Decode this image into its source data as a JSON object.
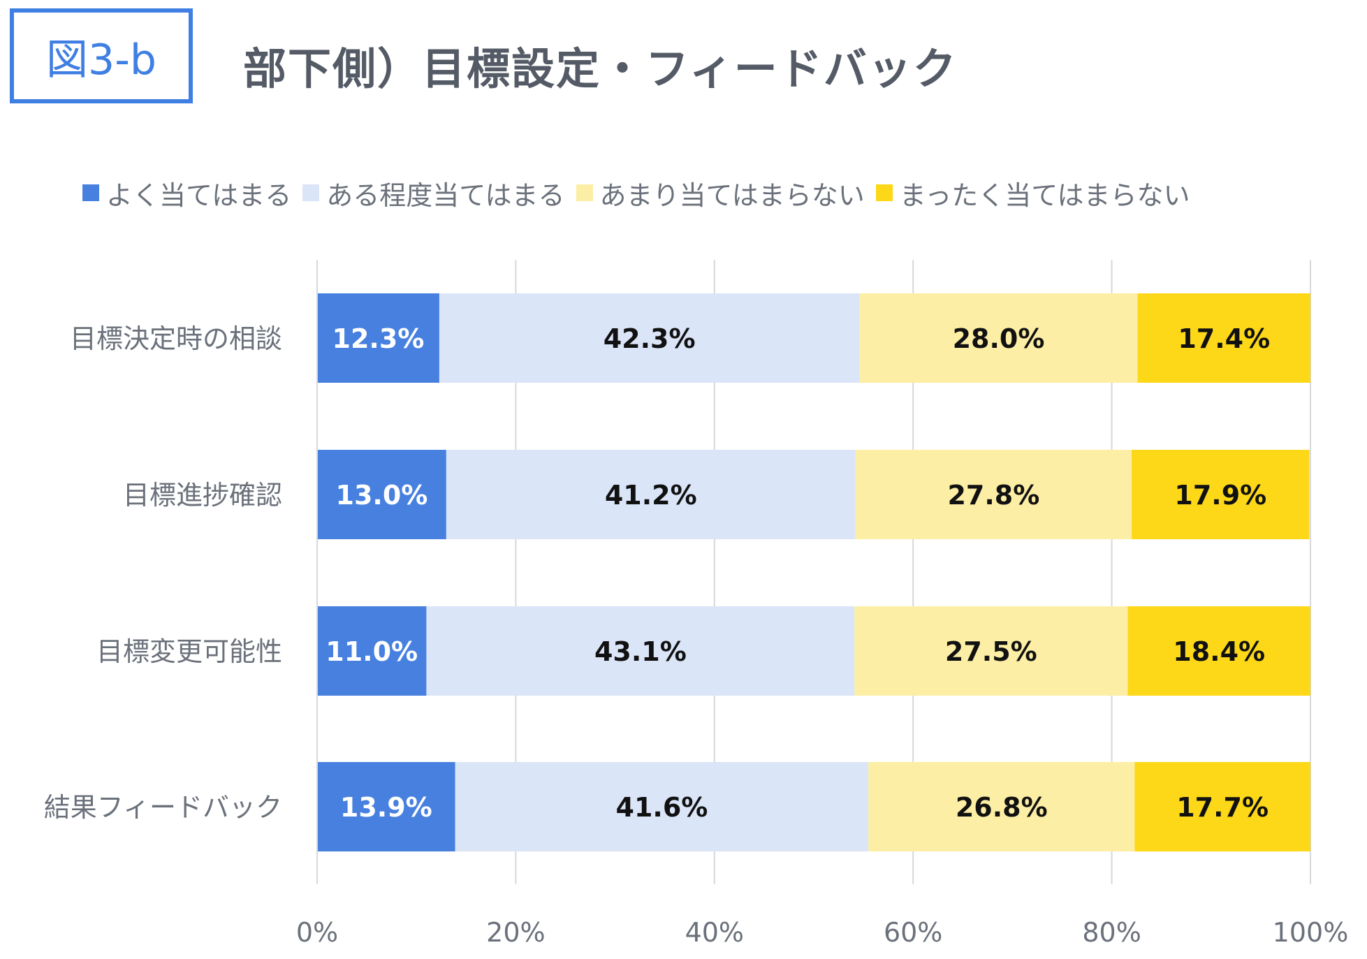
{
  "figure": {
    "badge": "図3-b",
    "title": "部下側）目標設定・フィードバック"
  },
  "colors": {
    "accent": "#3f7fe3",
    "series": [
      "#4780df",
      "#dbe5f8",
      "#fdeea5",
      "#fdd818"
    ],
    "label_light": "#ffffff",
    "label_dark": "#111111",
    "grid": "#d6d8dc",
    "axis_text": "#6b717b"
  },
  "chart_data": {
    "type": "bar",
    "orientation": "horizontal",
    "stacked": true,
    "categories": [
      "目標決定時の相談",
      "目標進捗確認",
      "目標変更可能性",
      "結果フィードバック"
    ],
    "series": [
      {
        "name": "よく当てはまる",
        "values": [
          12.3,
          13.0,
          11.0,
          13.9
        ]
      },
      {
        "name": "ある程度当てはまる",
        "values": [
          42.3,
          41.2,
          43.1,
          41.6
        ]
      },
      {
        "name": "あまり当てはまらない",
        "values": [
          28.0,
          27.8,
          27.5,
          26.8
        ]
      },
      {
        "name": "まったく当てはまらない",
        "values": [
          17.4,
          17.9,
          18.4,
          17.7
        ]
      }
    ],
    "data_labels": [
      [
        "12.3%",
        "42.3%",
        "28.0%",
        "17.4%"
      ],
      [
        "13.0%",
        "41.2%",
        "27.8%",
        "17.9%"
      ],
      [
        "11.0%",
        "43.1%",
        "27.5%",
        "18.4%"
      ],
      [
        "13.9%",
        "41.6%",
        "26.8%",
        "17.7%"
      ]
    ],
    "xlim": [
      0,
      100
    ],
    "xticks": [
      0,
      20,
      40,
      60,
      80,
      100
    ],
    "xtick_labels": [
      "0%",
      "20%",
      "40%",
      "60%",
      "80%",
      "100%"
    ],
    "grid": true,
    "legend_position": "top"
  }
}
